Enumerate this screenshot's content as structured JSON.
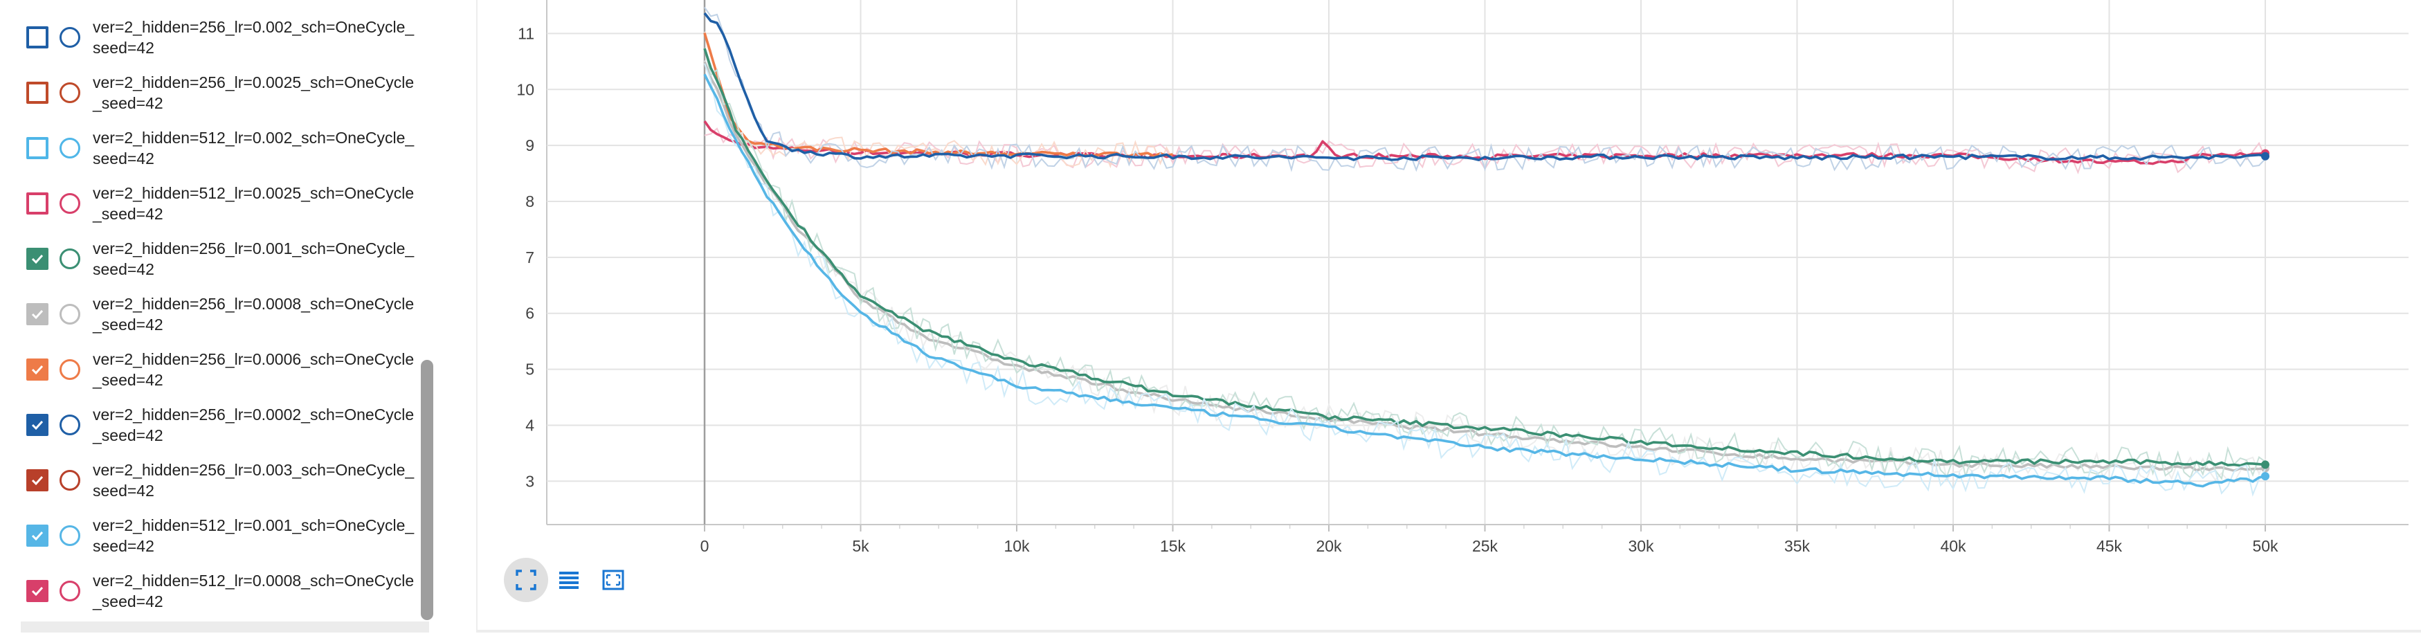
{
  "runs": [
    {
      "label": "ver=2_hidden=256_lr=0.002_sch=OneCycle_seed=42",
      "checked": false,
      "color": "#1f5fa6"
    },
    {
      "label": "ver=2_hidden=256_lr=0.0025_sch=OneCycle_seed=42",
      "checked": false,
      "color": "#bf4a2a"
    },
    {
      "label": "ver=2_hidden=512_lr=0.002_sch=OneCycle_seed=42",
      "checked": false,
      "color": "#4fb6e8"
    },
    {
      "label": "ver=2_hidden=512_lr=0.0025_sch=OneCycle_seed=42",
      "checked": false,
      "color": "#d83f6a"
    },
    {
      "label": "ver=2_hidden=256_lr=0.001_sch=OneCycle_seed=42",
      "checked": true,
      "color": "#3b8f73"
    },
    {
      "label": "ver=2_hidden=256_lr=0.0008_sch=OneCycle_seed=42",
      "checked": true,
      "color": "#bdbdbd"
    },
    {
      "label": "ver=2_hidden=256_lr=0.0006_sch=OneCycle_seed=42",
      "checked": true,
      "color": "#ee7b48"
    },
    {
      "label": "ver=2_hidden=256_lr=0.0002_sch=OneCycle_seed=42",
      "checked": true,
      "color": "#1f5fa6"
    },
    {
      "label": "ver=2_hidden=256_lr=0.003_sch=OneCycle_seed=42",
      "checked": true,
      "color": "#b8402a"
    },
    {
      "label": "ver=2_hidden=512_lr=0.001_sch=OneCycle_seed=42",
      "checked": true,
      "color": "#56b6e6"
    },
    {
      "label": "ver=2_hidden=512_lr=0.0008_sch=OneCycle_seed=42",
      "checked": true,
      "color": "#d83f6a"
    }
  ],
  "toolbar": {
    "expand_icon": "fullscreen-icon",
    "log_icon": "list-icon",
    "fit_icon": "fit-domain-icon",
    "accent": "#1976d2"
  },
  "chart_data": {
    "type": "line",
    "xlim": [
      0,
      50000
    ],
    "ylim": [
      2.2,
      11.5
    ],
    "x_ticks": [
      "0",
      "5k",
      "10k",
      "15k",
      "20k",
      "25k",
      "30k",
      "35k",
      "40k",
      "45k",
      "50k"
    ],
    "y_ticks": [
      "3",
      "4",
      "5",
      "6",
      "7",
      "8",
      "9",
      "10",
      "11"
    ],
    "grid": true,
    "series": [
      {
        "color": "#d83f6a",
        "values": [
          [
            0,
            9.4
          ],
          [
            500,
            9.15
          ],
          [
            1000,
            9.05
          ],
          [
            2000,
            8.95
          ],
          [
            5000,
            8.88
          ],
          [
            10000,
            8.84
          ],
          [
            15000,
            8.8
          ],
          [
            19500,
            8.82
          ],
          [
            19800,
            9.05
          ],
          [
            20200,
            8.82
          ],
          [
            25000,
            8.8
          ],
          [
            30000,
            8.82
          ],
          [
            35000,
            8.83
          ],
          [
            40000,
            8.82
          ],
          [
            45000,
            8.7
          ],
          [
            47000,
            8.7
          ],
          [
            48000,
            8.82
          ],
          [
            50000,
            8.85
          ]
        ]
      },
      {
        "color": "#ee7b48",
        "values": [
          [
            0,
            11.0
          ],
          [
            300,
            10.5
          ],
          [
            800,
            9.5
          ],
          [
            1500,
            9.05
          ],
          [
            3000,
            8.95
          ],
          [
            6000,
            8.9
          ],
          [
            9000,
            8.86
          ],
          [
            12000,
            8.84
          ],
          [
            15000,
            8.85
          ]
        ]
      },
      {
        "color": "#1f5fa6",
        "values": [
          [
            0,
            11.35
          ],
          [
            500,
            11.1
          ],
          [
            1000,
            10.4
          ],
          [
            1500,
            9.6
          ],
          [
            2000,
            9.1
          ],
          [
            3000,
            8.9
          ],
          [
            5000,
            8.8
          ],
          [
            10000,
            8.82
          ],
          [
            15000,
            8.8
          ],
          [
            20000,
            8.78
          ],
          [
            25000,
            8.78
          ],
          [
            30000,
            8.8
          ],
          [
            35000,
            8.78
          ],
          [
            40000,
            8.8
          ],
          [
            45000,
            8.78
          ],
          [
            50000,
            8.8
          ]
        ]
      },
      {
        "color": "#bdbdbd",
        "values": [
          [
            0,
            10.5
          ],
          [
            1000,
            9.2
          ],
          [
            2000,
            8.3
          ],
          [
            3000,
            7.5
          ],
          [
            4000,
            6.9
          ],
          [
            5000,
            6.25
          ],
          [
            7000,
            5.6
          ],
          [
            10000,
            5.05
          ],
          [
            15000,
            4.45
          ],
          [
            20000,
            4.1
          ],
          [
            25000,
            3.85
          ],
          [
            30000,
            3.6
          ],
          [
            35000,
            3.4
          ],
          [
            40000,
            3.3
          ],
          [
            45000,
            3.25
          ],
          [
            50000,
            3.2
          ]
        ]
      },
      {
        "color": "#3b8f73",
        "values": [
          [
            0,
            10.7
          ],
          [
            1000,
            9.3
          ],
          [
            2000,
            8.35
          ],
          [
            3000,
            7.6
          ],
          [
            4000,
            6.95
          ],
          [
            5000,
            6.3
          ],
          [
            7000,
            5.7
          ],
          [
            10000,
            5.15
          ],
          [
            15000,
            4.55
          ],
          [
            20000,
            4.15
          ],
          [
            25000,
            3.95
          ],
          [
            30000,
            3.7
          ],
          [
            35000,
            3.5
          ],
          [
            40000,
            3.35
          ],
          [
            45000,
            3.35
          ],
          [
            50000,
            3.3
          ]
        ]
      },
      {
        "color": "#56b6e6",
        "values": [
          [
            0,
            10.3
          ],
          [
            1000,
            9.1
          ],
          [
            2000,
            8.1
          ],
          [
            3000,
            7.3
          ],
          [
            4000,
            6.6
          ],
          [
            5000,
            6.0
          ],
          [
            7000,
            5.3
          ],
          [
            10000,
            4.7
          ],
          [
            15000,
            4.3
          ],
          [
            20000,
            3.95
          ],
          [
            25000,
            3.6
          ],
          [
            30000,
            3.4
          ],
          [
            35000,
            3.2
          ],
          [
            40000,
            3.1
          ],
          [
            45000,
            3.05
          ],
          [
            48000,
            2.95
          ],
          [
            50000,
            3.05
          ]
        ]
      }
    ]
  }
}
